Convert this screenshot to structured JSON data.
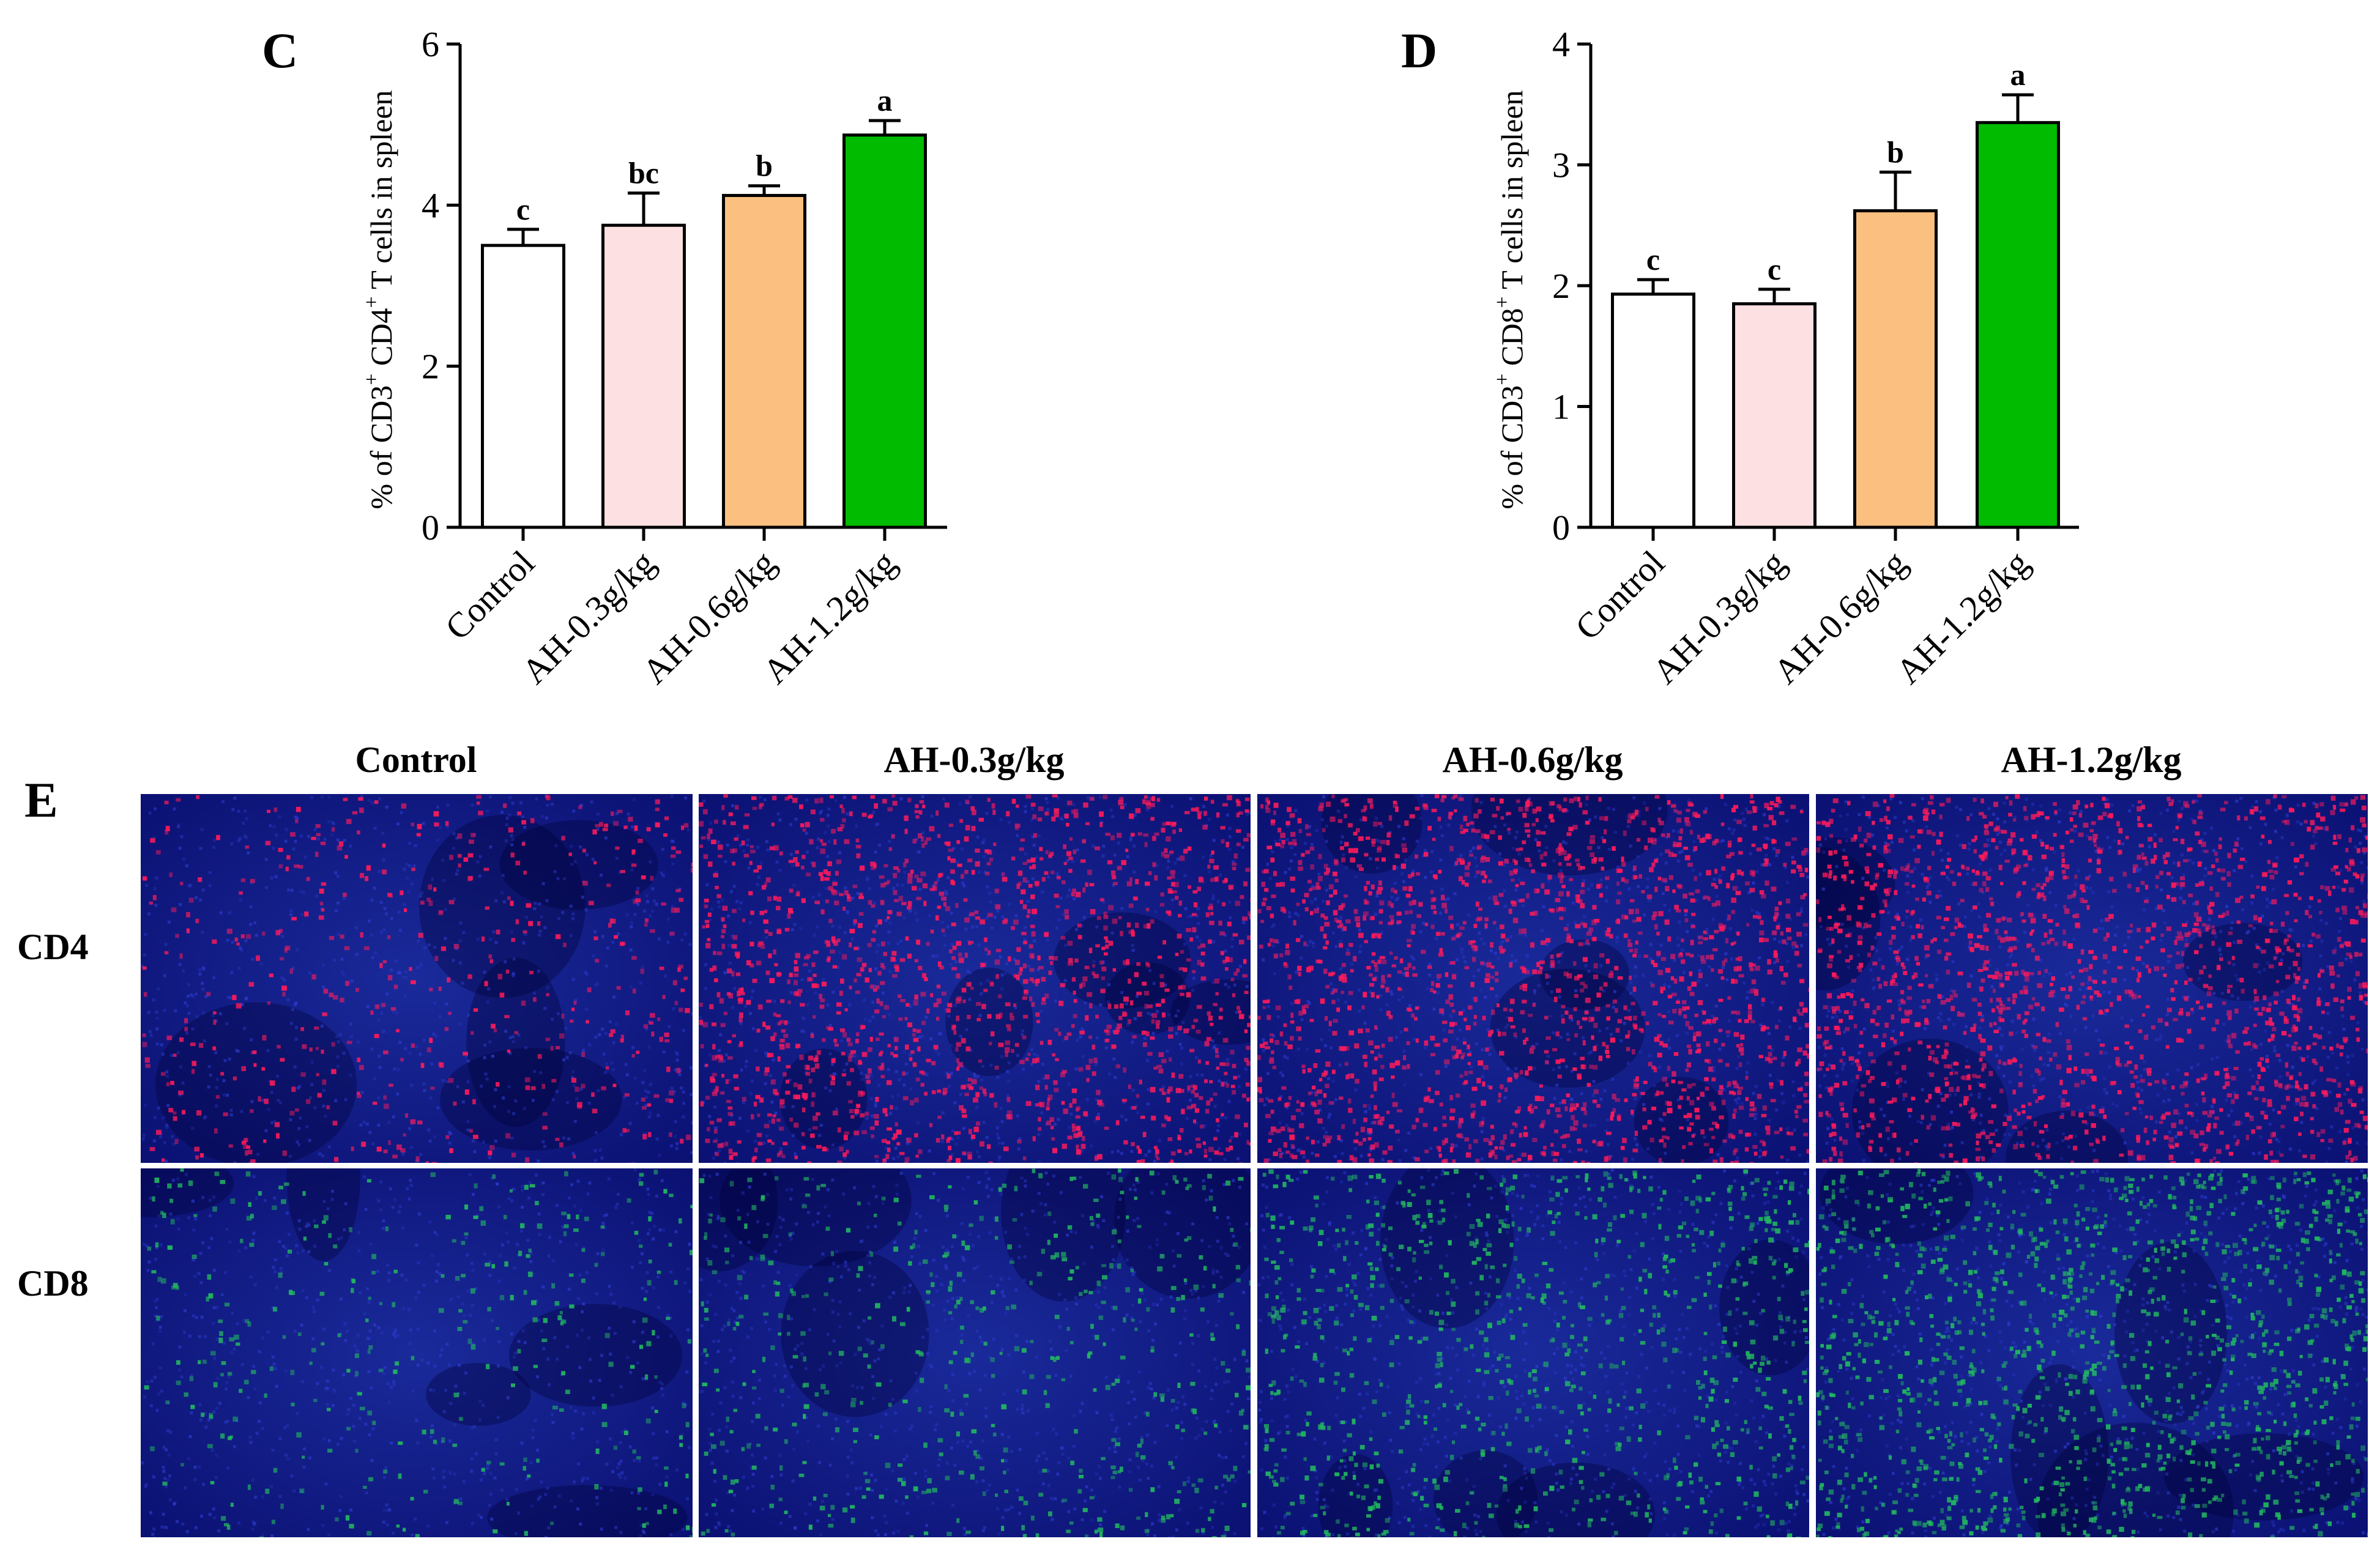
{
  "chart_data": [
    {
      "type": "bar",
      "panel_label": "C",
      "categories": [
        "Control",
        "AH-0.3g/kg",
        "AH-0.6g/kg",
        "AH-1.2g/kg"
      ],
      "values": [
        3.5,
        3.75,
        4.12,
        4.87
      ],
      "errors": [
        0.2,
        0.4,
        0.12,
        0.18
      ],
      "significance": [
        "c",
        "bc",
        "b",
        "a"
      ],
      "colors": [
        "#ffffff",
        "#fde0e2",
        "#fbbf7f",
        "#00bb00"
      ],
      "ylabel_parts": [
        "% of CD3",
        "+",
        " CD4",
        "+",
        " T cells in spleen"
      ],
      "ylim": [
        0,
        6
      ],
      "yticks": [
        "0",
        "2",
        "4",
        "6"
      ]
    },
    {
      "type": "bar",
      "panel_label": "D",
      "categories": [
        "Control",
        "AH-0.3g/kg",
        "AH-0.6g/kg",
        "AH-1.2g/kg"
      ],
      "values": [
        1.93,
        1.85,
        2.62,
        3.35
      ],
      "errors": [
        0.12,
        0.12,
        0.32,
        0.23
      ],
      "significance": [
        "c",
        "c",
        "b",
        "a"
      ],
      "colors": [
        "#ffffff",
        "#fde0e2",
        "#fbbf7f",
        "#00bb00"
      ],
      "ylabel_parts": [
        "% of CD3",
        "+",
        " CD8",
        "+",
        " T cells in spleen"
      ],
      "ylim": [
        0,
        4
      ],
      "yticks": [
        "0",
        "1",
        "2",
        "3",
        "4"
      ]
    }
  ],
  "micrographs": {
    "panel_label": "E",
    "columns": [
      "Control",
      "AH-0.3g/kg",
      "AH-0.6g/kg",
      "AH-1.2g/kg"
    ],
    "rows": [
      {
        "label": "CD4",
        "stain_color": "#ff1a5a",
        "densities": [
          0.18,
          0.55,
          0.62,
          0.58
        ]
      },
      {
        "label": "CD8",
        "stain_color": "#22b860",
        "densities": [
          0.12,
          0.18,
          0.32,
          0.48
        ]
      }
    ],
    "background_color": "#0a0f70"
  }
}
